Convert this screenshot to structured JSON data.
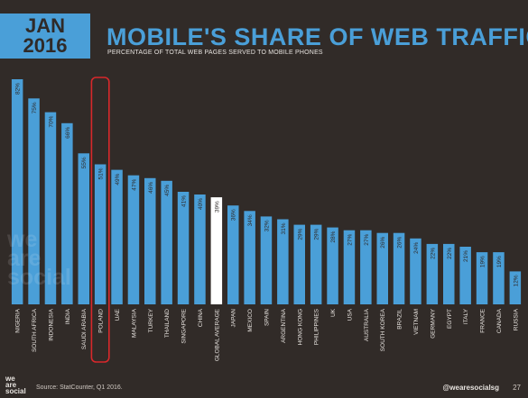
{
  "header": {
    "month": "JAN",
    "year": "2016",
    "title": "MOBILE'S SHARE OF WEB TRAFFIC",
    "subtitle": "PERCENTAGE OF TOTAL WEB PAGES SERVED TO MOBILE PHONES"
  },
  "watermark": "we are social",
  "footer": {
    "logo_line1": "we",
    "logo_line2": "are",
    "logo_line3": "social",
    "source": "Source: StatCounter, Q1 2016.",
    "handle": "@wearesocialsg",
    "page": "27"
  },
  "colors": {
    "background": "#312b28",
    "bar": "#4a9fd8",
    "highlight_bar": "#ffffff",
    "highlight_box": "#d8282b"
  },
  "chart_data": {
    "type": "bar",
    "title": "MOBILE'S SHARE OF WEB TRAFFIC",
    "categories": [
      "NIGERIA",
      "SOUTH AFRICA",
      "INDONESIA",
      "INDIA",
      "SAUDI ARABIA",
      "POLAND",
      "UAE",
      "MALAYSIA",
      "TURKEY",
      "THAILAND",
      "SINGAPORE",
      "CHINA",
      "GLOBAL AVERAGE",
      "JAPAN",
      "MEXICO",
      "SPAIN",
      "ARGENTINA",
      "HONG KONG",
      "PHILIPPINES",
      "UK",
      "USA",
      "AUSTRALIA",
      "SOUTH KOREA",
      "BRAZIL",
      "VIETNAM",
      "GERMANY",
      "EGYPT",
      "ITALY",
      "FRANCE",
      "CANADA",
      "RUSSIA"
    ],
    "values": [
      82,
      75,
      70,
      66,
      55,
      51,
      49,
      47,
      46,
      45,
      41,
      40,
      39,
      36,
      34,
      32,
      31,
      29,
      29,
      28,
      27,
      27,
      26,
      26,
      24,
      22,
      22,
      21,
      19,
      19,
      12
    ],
    "value_labels": [
      "82%",
      "75%",
      "70%",
      "66%",
      "55%",
      "51%",
      "49%",
      "47%",
      "46%",
      "45%",
      "41%",
      "40%",
      "39%",
      "36%",
      "34%",
      "32%",
      "31%",
      "29%",
      "29%",
      "28%",
      "27%",
      "27%",
      "26%",
      "26%",
      "24%",
      "22%",
      "22%",
      "21%",
      "19%",
      "19%",
      "12%"
    ],
    "highlight_category": "GLOBAL AVERAGE",
    "boxed_category": "POLAND",
    "ylim": [
      0,
      100
    ],
    "grid": false,
    "legend": "none"
  }
}
